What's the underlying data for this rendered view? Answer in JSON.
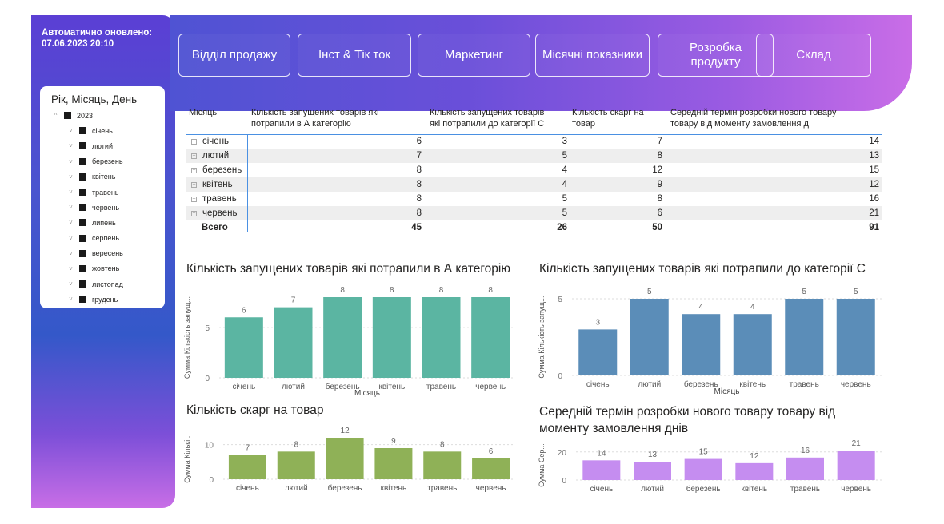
{
  "refresh": {
    "label": "Автоматично оновлено:",
    "datetime": "07.06.2023 20:10"
  },
  "slicer": {
    "title": "Рік, Місяць, День",
    "year": "2023",
    "months": [
      "січень",
      "лютий",
      "березень",
      "квітень",
      "травень",
      "червень",
      "липень",
      "серпень",
      "вересень",
      "жовтень",
      "листопад",
      "грудень"
    ]
  },
  "nav": {
    "sales": "Відділ продажу",
    "insta_tiktok": "Інст & Тік ток",
    "marketing": "Маркетинг",
    "monthly": "Місячні показники",
    "product_dev_line1": "Розробка",
    "product_dev_line2": "продукту",
    "warehouse": "Склад"
  },
  "table": {
    "headers": {
      "month": "Місяць",
      "cat_a_l1": "Кількість запущених товарів які",
      "cat_a_l2": "потрапили в А категорію",
      "cat_c_l1": "Кількість запущених товарів",
      "cat_c_l2": "які потрапили до категорії С",
      "complaints_l1": "Кількість скарг на",
      "complaints_l2": "товар",
      "dev_l1": "Середній термін розробки нового товару",
      "dev_l2": "товару від моменту замовлення д"
    },
    "rows": [
      {
        "month": "січень",
        "a": "6",
        "c": "3",
        "complaints": "7",
        "dev": "14"
      },
      {
        "month": "лютий",
        "a": "7",
        "c": "5",
        "complaints": "8",
        "dev": "13"
      },
      {
        "month": "березень",
        "a": "8",
        "c": "4",
        "complaints": "12",
        "dev": "15"
      },
      {
        "month": "квітень",
        "a": "8",
        "c": "4",
        "complaints": "9",
        "dev": "12"
      },
      {
        "month": "травень",
        "a": "8",
        "c": "5",
        "complaints": "8",
        "dev": "16"
      },
      {
        "month": "червень",
        "a": "8",
        "c": "5",
        "complaints": "6",
        "dev": "21"
      }
    ],
    "total": {
      "label": "Всего",
      "a": "45",
      "c": "26",
      "complaints": "50",
      "dev": "91"
    }
  },
  "chart_data": [
    {
      "id": "chart-a",
      "type": "bar",
      "title": "Кількість запущених товарів які потрапили в А категорію",
      "categories": [
        "січень",
        "лютий",
        "березень",
        "квітень",
        "травень",
        "червень"
      ],
      "values": [
        6,
        7,
        8,
        8,
        8,
        8
      ],
      "ylabel": "Сумма Кількість запущ...",
      "xlabel": "Місяць",
      "yticks": [
        "0",
        "5"
      ],
      "ylim": [
        0,
        8
      ],
      "color": "#5bb5a2"
    },
    {
      "id": "chart-c",
      "type": "bar",
      "title": "Кількість запущених товарів які потрапили до категорії С",
      "categories": [
        "січень",
        "лютий",
        "березень",
        "квітень",
        "травень",
        "червень"
      ],
      "values": [
        3,
        5,
        4,
        4,
        5,
        5
      ],
      "ylabel": "Сумма Кількість запущ...",
      "xlabel": "Місяць",
      "yticks": [
        "0",
        "5"
      ],
      "ylim": [
        0,
        5
      ],
      "color": "#5b8db8"
    },
    {
      "id": "chart-complaints",
      "type": "bar",
      "title": "Кількість скарг на товар",
      "categories": [
        "січень",
        "лютий",
        "березень",
        "квітень",
        "травень",
        "червень"
      ],
      "values": [
        7,
        8,
        12,
        9,
        8,
        6
      ],
      "ylabel": "Сумма Кількі...",
      "xlabel": "",
      "yticks": [
        "0",
        "10"
      ],
      "ylim": [
        0,
        12
      ],
      "color": "#8fb157"
    },
    {
      "id": "chart-dev",
      "type": "bar",
      "title_line1": "Середній термін розробки нового товару товару від",
      "title_line2": "моменту замовлення днів",
      "categories": [
        "січень",
        "лютий",
        "березень",
        "квітень",
        "травень",
        "червень"
      ],
      "values": [
        14,
        13,
        15,
        12,
        16,
        21
      ],
      "ylabel": "Сумма Сер...",
      "xlabel": "",
      "yticks": [
        "0",
        "20"
      ],
      "ylim": [
        0,
        21
      ],
      "color": "#c58df0"
    }
  ]
}
